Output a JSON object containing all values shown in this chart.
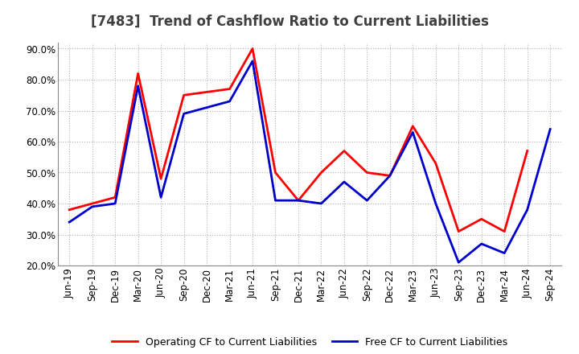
{
  "title": "[7483]  Trend of Cashflow Ratio to Current Liabilities",
  "x_labels": [
    "Jun-19",
    "Sep-19",
    "Dec-19",
    "Mar-20",
    "Jun-20",
    "Sep-20",
    "Dec-20",
    "Mar-21",
    "Jun-21",
    "Sep-21",
    "Dec-21",
    "Mar-22",
    "Jun-22",
    "Sep-22",
    "Dec-22",
    "Mar-23",
    "Jun-23",
    "Sep-23",
    "Dec-23",
    "Mar-24",
    "Jun-24",
    "Sep-24"
  ],
  "operating_cf": [
    0.38,
    0.4,
    0.42,
    0.82,
    0.48,
    0.75,
    0.76,
    0.77,
    0.9,
    0.5,
    0.41,
    0.5,
    0.57,
    0.5,
    0.49,
    0.65,
    0.53,
    0.31,
    0.35,
    0.31,
    0.57,
    null
  ],
  "free_cf": [
    0.34,
    0.39,
    0.4,
    0.78,
    0.42,
    0.69,
    0.71,
    0.73,
    0.86,
    0.41,
    0.41,
    0.4,
    0.47,
    0.41,
    0.49,
    0.63,
    0.4,
    0.21,
    0.27,
    0.24,
    0.38,
    0.64
  ],
  "ylim": [
    0.2,
    0.92
  ],
  "yticks": [
    0.2,
    0.3,
    0.4,
    0.5,
    0.6,
    0.7,
    0.8,
    0.9
  ],
  "operating_color": "#FF0000",
  "free_color": "#0000CC",
  "background_color": "#FFFFFF",
  "grid_color": "#AAAAAA",
  "title_color": "#404040",
  "legend_labels": [
    "Operating CF to Current Liabilities",
    "Free CF to Current Liabilities"
  ],
  "title_fontsize": 12,
  "tick_fontsize": 8.5,
  "legend_fontsize": 9
}
